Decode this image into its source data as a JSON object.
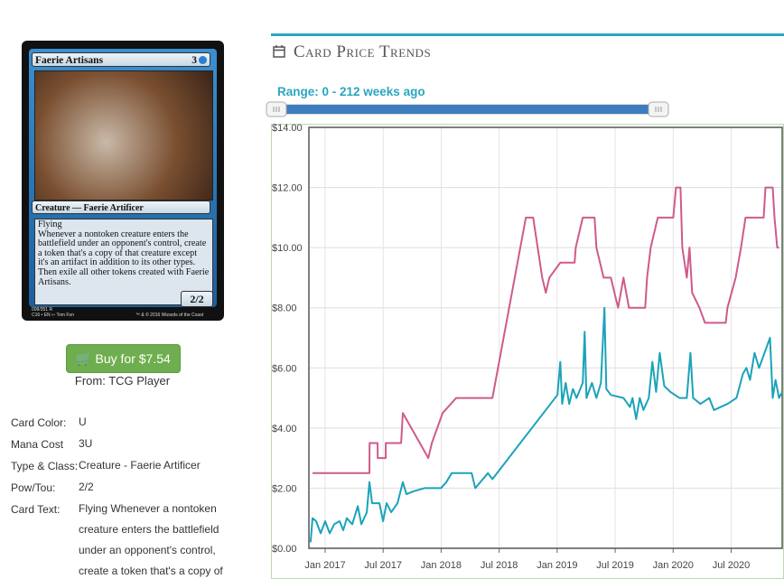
{
  "card": {
    "name": "Faerie Artisans",
    "mana": "3",
    "type_line": "Creature — Faerie Artificer",
    "rules": [
      "Flying",
      "Whenever a nontoken creature enters the battlefield under an opponent's control, create a token that's a copy of that creature except it's an artifact in addition to its other types. Then exile all other tokens created with Faerie Artisans."
    ],
    "pt": "2/2",
    "collector": "008/351 R",
    "set_line": "C16 • EN ➳ Tom Fon",
    "copyright": "™ & © 2016 Wizards of the Coast"
  },
  "buy": {
    "button": "Buy for $7.54",
    "source": "From: TCG Player"
  },
  "details": [
    {
      "label": "Card Color:",
      "value": "U"
    },
    {
      "label": "Mana Cost",
      "value": "3U"
    },
    {
      "label": "Type & Class:",
      "value": "Creature - Faerie Artificer"
    },
    {
      "label": "Pow/Tou:",
      "value": "2/2"
    },
    {
      "label": "Card Text:",
      "value": "Flying Whenever a nontoken creature enters the battlefield under an opponent's control, create a token that's a copy of"
    }
  ],
  "section_title": "Card Price Trends",
  "range_label": "Range: 0 - 212 weeks ago",
  "chart_data": {
    "type": "line",
    "grid": true,
    "xlim": [
      2016.86,
      2020.94
    ],
    "xticks": [
      {
        "value": 2017,
        "label": "Jan 2017"
      },
      {
        "value": 2017.5,
        "label": "Jul 2017"
      },
      {
        "value": 2018,
        "label": "Jan 2018"
      },
      {
        "value": 2018.5,
        "label": "Jul 2018"
      },
      {
        "value": 2019,
        "label": "Jan 2019"
      },
      {
        "value": 2019.5,
        "label": "Jul 2019"
      },
      {
        "value": 2020,
        "label": "Jan 2020"
      },
      {
        "value": 2020.5,
        "label": "Jul 2020"
      }
    ],
    "ylim": [
      0,
      14
    ],
    "yticks": [
      {
        "value": 0,
        "label": "$0.00"
      },
      {
        "value": 2,
        "label": "$2.00"
      },
      {
        "value": 4,
        "label": "$4.00"
      },
      {
        "value": 6,
        "label": "$6.00"
      },
      {
        "value": 8,
        "label": "$8.00"
      },
      {
        "value": 10,
        "label": "$10.00"
      },
      {
        "value": 12,
        "label": "$12.00"
      },
      {
        "value": 14,
        "label": "$14.00"
      }
    ],
    "series": [
      {
        "color": "#cf5a8c",
        "x": [
          2016.891,
          2017.382,
          2017.383,
          2017.452,
          2017.453,
          2017.522,
          2017.523,
          2017.655,
          2017.67,
          2017.889,
          2017.92,
          2018.013,
          2018.13,
          2018.442,
          2018.73,
          2018.793,
          2018.871,
          2018.902,
          2018.933,
          2019.027,
          2019.151,
          2019.16,
          2019.221,
          2019.323,
          2019.338,
          2019.401,
          2019.463,
          2019.525,
          2019.572,
          2019.619,
          2019.759,
          2019.775,
          2019.806,
          2019.868,
          2020.001,
          2020.024,
          2020.063,
          2020.079,
          2020.118,
          2020.141,
          2020.164,
          2020.227,
          2020.274,
          2020.453,
          2020.468,
          2020.539,
          2020.585,
          2020.624,
          2020.78,
          2020.796,
          2020.858,
          2020.874,
          2020.897,
          2020.913
        ],
        "values": [
          2.5,
          2.5,
          3.5,
          3.5,
          3.0,
          3.0,
          3.5,
          3.5,
          4.5,
          3.0,
          3.5,
          4.5,
          5.0,
          5.0,
          11.0,
          11.0,
          9.0,
          8.5,
          9.0,
          9.5,
          9.5,
          10.0,
          11.0,
          11.0,
          10.0,
          9.0,
          9.0,
          8.0,
          9.0,
          8.0,
          8.0,
          9.0,
          10.0,
          11.0,
          11.0,
          12.0,
          12.0,
          10.0,
          9.0,
          10.0,
          8.5,
          8.0,
          7.5,
          7.5,
          8.0,
          9.0,
          10.0,
          11.0,
          11.0,
          12.0,
          12.0,
          11.0,
          10.0,
          10.0
        ]
      },
      {
        "color": "#1ba3b9",
        "x": [
          2016.875,
          2016.891,
          2016.922,
          2016.961,
          2017.0,
          2017.039,
          2017.078,
          2017.125,
          2017.156,
          2017.187,
          2017.234,
          2017.281,
          2017.312,
          2017.359,
          2017.382,
          2017.405,
          2017.468,
          2017.499,
          2017.53,
          2017.569,
          2017.624,
          2017.67,
          2017.701,
          2017.764,
          2017.857,
          2017.998,
          2018.044,
          2018.091,
          2018.263,
          2018.294,
          2018.403,
          2018.442,
          2019.003,
          2019.027,
          2019.043,
          2019.074,
          2019.104,
          2019.136,
          2019.167,
          2019.221,
          2019.237,
          2019.253,
          2019.3,
          2019.338,
          2019.377,
          2019.408,
          2019.424,
          2019.463,
          2019.572,
          2019.627,
          2019.65,
          2019.681,
          2019.712,
          2019.744,
          2019.79,
          2019.821,
          2019.853,
          2019.884,
          2019.923,
          2019.977,
          2020.055,
          2020.118,
          2020.149,
          2020.172,
          2020.235,
          2020.312,
          2020.351,
          2020.468,
          2020.546,
          2020.601,
          2020.632,
          2020.663,
          2020.702,
          2020.741,
          2020.835,
          2020.858,
          2020.882,
          2020.913,
          2020.94
        ],
        "values": [
          0.2,
          1.0,
          0.9,
          0.5,
          0.9,
          0.5,
          0.8,
          0.9,
          0.6,
          1.0,
          0.8,
          1.4,
          0.8,
          1.2,
          2.2,
          1.5,
          1.5,
          0.9,
          1.5,
          1.2,
          1.5,
          2.2,
          1.8,
          1.9,
          2.0,
          2.0,
          2.2,
          2.5,
          2.5,
          2.0,
          2.5,
          2.3,
          5.1,
          6.2,
          4.8,
          5.5,
          4.8,
          5.3,
          5.0,
          5.5,
          7.2,
          5.0,
          5.5,
          5.0,
          5.5,
          8.0,
          5.3,
          5.1,
          5.0,
          4.7,
          5.0,
          4.3,
          5.0,
          4.6,
          5.0,
          6.2,
          5.2,
          6.5,
          5.4,
          5.2,
          5.0,
          5.0,
          6.5,
          5.0,
          4.8,
          5.0,
          4.6,
          4.8,
          5.0,
          5.8,
          6.0,
          5.6,
          6.5,
          6.0,
          7.0,
          5.0,
          5.6,
          5.0,
          5.2
        ]
      }
    ]
  }
}
